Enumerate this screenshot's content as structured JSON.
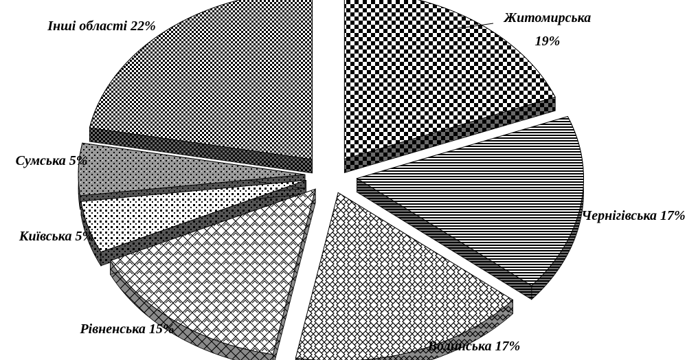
{
  "chart_data": {
    "type": "pie",
    "title": "",
    "three_d": true,
    "exploded": true,
    "legend": "none",
    "categories": [
      "Житомирська",
      "Чернігівська",
      "Волинська",
      "Рівненська",
      "Київська",
      "Сумська",
      "Інші області"
    ],
    "values": [
      19,
      17,
      17,
      15,
      5,
      5,
      22
    ],
    "unit": "%",
    "labels": [
      {
        "name": "Житомирська",
        "value": "19%"
      },
      {
        "name": "Чернігівська",
        "value": "17%"
      },
      {
        "name": "Волинська",
        "value": "17%"
      },
      {
        "name": "Рівненська",
        "value": "15%"
      },
      {
        "name": "Київська",
        "value": "5%"
      },
      {
        "name": "Сумська",
        "value": "5%"
      },
      {
        "name": "Інші області",
        "value": "22%"
      }
    ],
    "patterns": [
      "checker-large",
      "horizontal-lines",
      "scales-outline",
      "tiles-outline",
      "dots-dense",
      "dots-grid",
      "checker-small"
    ]
  }
}
